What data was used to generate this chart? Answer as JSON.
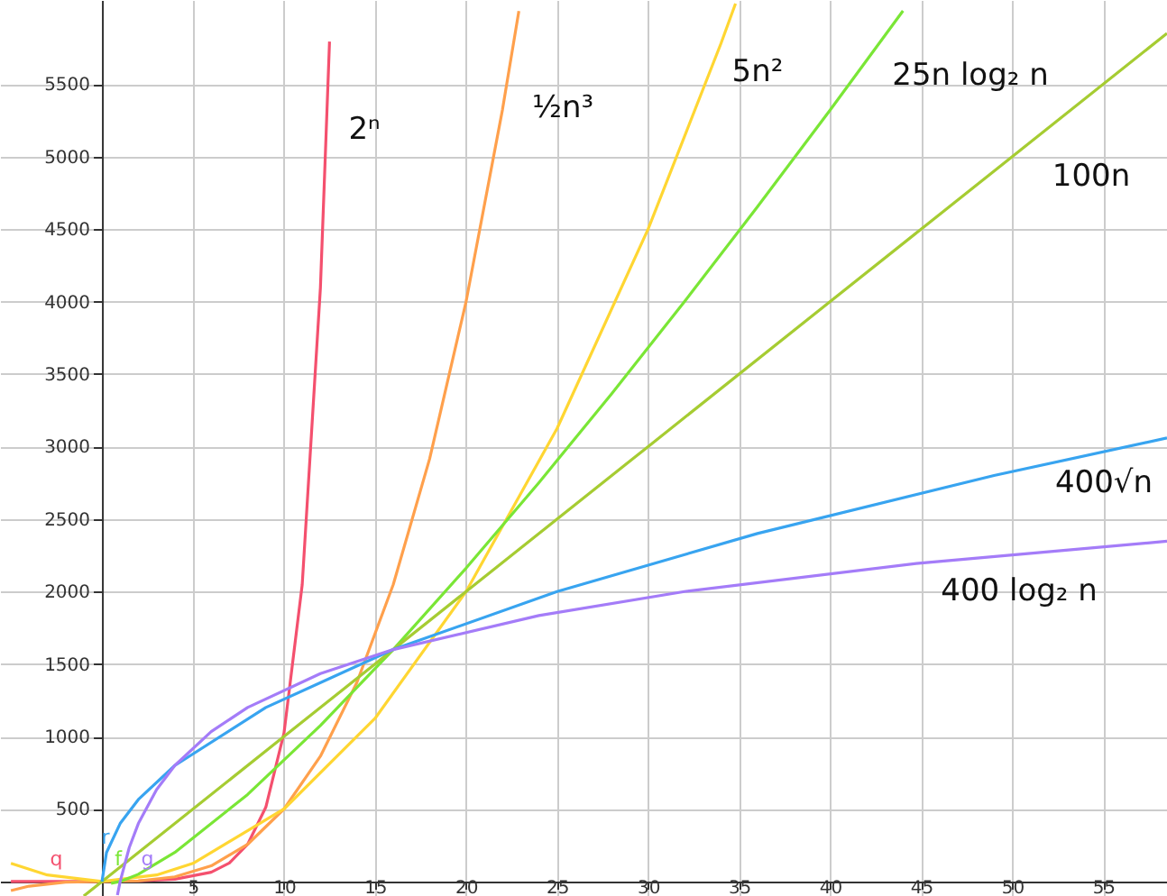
{
  "chart_data": {
    "type": "line",
    "xlim": [
      -5.6,
      58.5
    ],
    "ylim": [
      -100,
      6080
    ],
    "xticks": [
      5,
      10,
      15,
      20,
      25,
      30,
      35,
      40,
      45,
      50,
      55
    ],
    "yticks": [
      500,
      1000,
      1500,
      2000,
      2500,
      3000,
      3500,
      4000,
      4500,
      5000,
      5500
    ],
    "grid": true,
    "line_style": "solid",
    "marker": "none",
    "series": [
      {
        "name": "2ⁿ",
        "color": "#f4506e",
        "x": [
          -5,
          -2,
          0,
          2,
          4,
          6,
          7,
          8,
          9,
          10,
          11,
          12,
          12.5
        ],
        "values": [
          0.03,
          0.25,
          1,
          4,
          16,
          64,
          128,
          256,
          512,
          1024,
          2048,
          4096,
          5793
        ]
      },
      {
        "name": "½n³",
        "color": "#ffa04c",
        "x": [
          -5,
          -4,
          -2,
          0,
          2,
          4,
          6,
          8,
          10,
          12,
          14,
          16,
          18,
          20,
          22,
          22.9
        ],
        "values": [
          -62.5,
          -32,
          -4,
          0,
          4,
          32,
          108,
          256,
          500,
          864,
          1372,
          2048,
          2916,
          4000,
          5324,
          6004.5
        ]
      },
      {
        "name": "5n²",
        "color": "#ffd632",
        "x": [
          -5,
          -3,
          0,
          3,
          5,
          10,
          15,
          20,
          25,
          30,
          34,
          34.8
        ],
        "values": [
          125,
          45,
          0,
          45,
          125,
          500,
          1125,
          2000,
          3125,
          4500,
          5780,
          6055.2
        ]
      },
      {
        "name": "25n log₂ n",
        "color": "#7ae636",
        "x": [
          0.5,
          1,
          2,
          4,
          8,
          12,
          16,
          20,
          24,
          28,
          32,
          36,
          40,
          44
        ],
        "values": [
          -12.5,
          0,
          50,
          200,
          600,
          1075.5,
          1600,
          2161,
          2751,
          3365,
          4000,
          4653,
          5322,
          6005
        ]
      },
      {
        "name": "100n",
        "color": "#a6cc32",
        "x": [
          -1,
          0,
          10,
          20,
          30,
          40,
          50,
          58.5
        ],
        "values": [
          -100,
          0,
          1000,
          2000,
          3000,
          4000,
          5000,
          5850
        ]
      },
      {
        "name": "400√n",
        "color": "#38a4f0",
        "x": [
          0,
          0.25,
          1,
          2,
          4,
          9,
          16,
          25,
          36,
          49,
          58.5
        ],
        "values": [
          0,
          200,
          400,
          565.7,
          800,
          1200,
          1600,
          2000,
          2400,
          2800,
          3059
        ]
      },
      {
        "name": "400 log₂ n",
        "color": "#a47cf8",
        "x": [
          0.85,
          1,
          1.5,
          2,
          3,
          4,
          6,
          8,
          12,
          16,
          24,
          32,
          45,
          58.5
        ],
        "values": [
          -93.8,
          0,
          234,
          400,
          634,
          800,
          1034,
          1200,
          1434,
          1600,
          1834,
          2000,
          2197,
          2347
        ]
      }
    ],
    "annotations": [
      {
        "text": "q",
        "x": -3,
        "y": 0
      },
      {
        "text": "f",
        "x": 0.4,
        "y": 0
      },
      {
        "text": "g",
        "x": 2,
        "y": 0
      },
      {
        "text": "r",
        "x": -0.3,
        "y": 150
      }
    ]
  }
}
